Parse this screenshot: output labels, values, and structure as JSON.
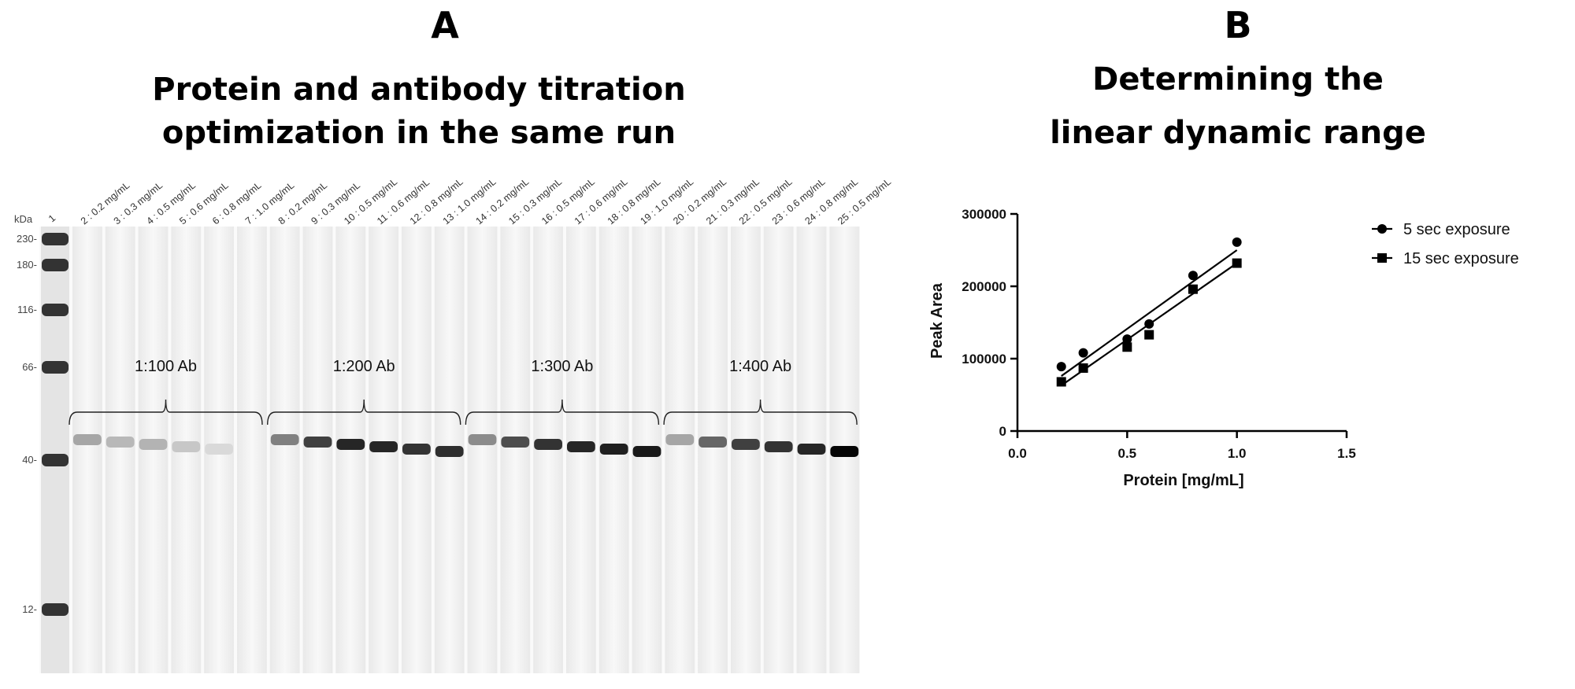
{
  "panel_a": {
    "letter": "A",
    "title_lines": [
      "Protein and antibody titration",
      "optimization in the same run"
    ],
    "kda_label": "kDa",
    "ladder_lane_label": "1",
    "ladder_markers": [
      "230",
      "180",
      "116",
      "66",
      "40",
      "12"
    ],
    "lane_labels": [
      "2 : 0.2 mg/mL",
      "3 : 0.3 mg/mL",
      "4 : 0.5 mg/mL",
      "5 : 0.6 mg/mL",
      "6 : 0.8 mg/mL",
      "7 : 1.0 mg/mL",
      "8 : 0.2 mg/mL",
      "9 : 0.3 mg/mL",
      "10 : 0.5 mg/mL",
      "11 : 0.6 mg/mL",
      "12 : 0.8 mg/mL",
      "13 : 1.0 mg/mL",
      "14 : 0.2 mg/mL",
      "15 : 0.3 mg/mL",
      "16 : 0.5 mg/mL",
      "17 : 0.6 mg/mL",
      "18 : 0.8 mg/mL",
      "19 : 1.0 mg/mL",
      "20 : 0.2 mg/mL",
      "21 : 0.3 mg/mL",
      "22 : 0.5 mg/mL",
      "23 : 0.6 mg/mL",
      "24 : 0.8 mg/mL",
      "25 : 0.5 mg/mL"
    ],
    "band_intensities": [
      0.35,
      0.28,
      0.3,
      0.22,
      0.15,
      0.0,
      0.5,
      0.75,
      0.85,
      0.85,
      0.8,
      0.82,
      0.45,
      0.7,
      0.8,
      0.85,
      0.88,
      0.9,
      0.35,
      0.6,
      0.75,
      0.8,
      0.85,
      0.98
    ],
    "groups": [
      "1:100 Ab",
      "1:200 Ab",
      "1:300 Ab",
      "1:400 Ab"
    ]
  },
  "panel_b": {
    "letter": "B",
    "title_lines": [
      "Determining the",
      "linear dynamic range"
    ]
  },
  "chart_data": {
    "type": "scatter",
    "title": "Determining the linear dynamic range",
    "xlabel": "Protein [mg/mL]",
    "ylabel": "Peak Area",
    "xlim": [
      0,
      1.5
    ],
    "ylim": [
      0,
      300000
    ],
    "xticks": [
      "0.0",
      "0.5",
      "1.0",
      "1.5"
    ],
    "yticks": [
      "0",
      "100000",
      "200000",
      "300000"
    ],
    "legend_position": "right",
    "series": [
      {
        "name": "5 sec exposure",
        "marker": "circle",
        "x": [
          0.2,
          0.3,
          0.5,
          0.6,
          0.8,
          1.0
        ],
        "y": [
          89000,
          108000,
          127000,
          148000,
          215000,
          261000
        ],
        "fit": [
          [
            0.2,
            76000
          ],
          [
            1.0,
            250000
          ]
        ]
      },
      {
        "name": "15 sec exposure",
        "marker": "square",
        "x": [
          0.2,
          0.3,
          0.5,
          0.6,
          0.8,
          1.0
        ],
        "y": [
          68000,
          87000,
          116000,
          133000,
          196000,
          232000
        ],
        "fit": [
          [
            0.2,
            63000
          ],
          [
            1.0,
            232000
          ]
        ]
      }
    ]
  }
}
